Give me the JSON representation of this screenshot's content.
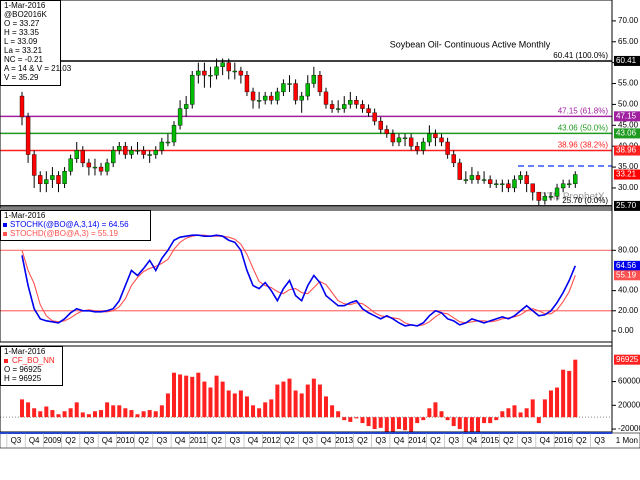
{
  "chart_data": [
    {
      "type": "candlestick",
      "title": "Soybean Oil- Continuous Active Monthly",
      "watermark": "DTN ProphetX",
      "info": [
        "1-Mar-2016",
        "@BO2016K",
        "O = 33.27",
        "H = 33.35",
        "L = 33.09",
        "La = 33.21",
        "NC = -0.21",
        "A = 14 & V = 21.03",
        "V = 35.29"
      ],
      "open": [
        52,
        47,
        38,
        33,
        31,
        32,
        33,
        31,
        34,
        37,
        39,
        36,
        35,
        35,
        34,
        36,
        39,
        40,
        38,
        39,
        39,
        38,
        38,
        39,
        41,
        41,
        45,
        49,
        50,
        57,
        58,
        57,
        57,
        59,
        60,
        58,
        58,
        57,
        53,
        51,
        51,
        52,
        51,
        53,
        55,
        55,
        51,
        52,
        55,
        57,
        53,
        50,
        49,
        49,
        50,
        51,
        50,
        49,
        48,
        46,
        44,
        43,
        41,
        42,
        42,
        40,
        39,
        41,
        43,
        42,
        41,
        38,
        36,
        32,
        32,
        33,
        32,
        32,
        31,
        31,
        31,
        30,
        32,
        33,
        31,
        29,
        27,
        28,
        28,
        30,
        31,
        31
      ],
      "high": [
        53,
        48,
        39,
        34,
        34,
        35,
        34,
        35,
        38,
        41,
        40,
        37,
        37,
        36,
        37,
        40,
        41,
        41,
        40,
        41,
        40,
        39,
        40,
        42,
        43,
        46,
        51,
        52,
        58,
        60,
        60,
        59,
        61,
        61,
        61,
        60,
        59,
        58,
        54,
        53,
        53,
        53,
        54,
        56,
        57,
        56,
        53,
        57,
        59,
        58,
        54,
        51,
        51,
        52,
        53,
        52,
        51,
        50,
        49,
        47,
        45,
        44,
        43,
        43,
        43,
        41,
        42,
        45,
        44,
        43,
        42,
        39,
        37,
        34,
        35,
        34,
        34,
        33,
        32,
        32,
        32,
        33,
        34,
        34,
        31,
        29,
        29,
        29,
        31,
        32,
        32,
        34
      ],
      "low": [
        45,
        36,
        30,
        29,
        29,
        30,
        29,
        30,
        33,
        36,
        35,
        33,
        33,
        33,
        33,
        35,
        38,
        37,
        37,
        38,
        37,
        36,
        37,
        38,
        40,
        40,
        44,
        47,
        49,
        55,
        54,
        54,
        56,
        57,
        56,
        56,
        55,
        52,
        49,
        49,
        50,
        50,
        50,
        52,
        53,
        50,
        48,
        51,
        54,
        52,
        49,
        48,
        48,
        48,
        49,
        49,
        48,
        47,
        45,
        43,
        42,
        40,
        40,
        40,
        39,
        38,
        38,
        40,
        40,
        40,
        37,
        35,
        32,
        31,
        31,
        31,
        31,
        30,
        30,
        29,
        29,
        29,
        31,
        29,
        27,
        25.7,
        26,
        27,
        27,
        29,
        30,
        30
      ],
      "close": [
        47,
        38,
        33,
        31,
        32,
        33,
        31,
        34,
        37,
        39,
        36,
        35,
        35,
        34,
        36,
        39,
        40,
        38,
        39,
        39,
        38,
        38,
        39,
        41,
        41,
        45,
        49,
        50,
        57,
        58,
        57,
        57,
        59,
        60,
        58,
        58,
        57,
        53,
        51,
        51,
        52,
        51,
        53,
        55,
        55,
        51,
        52,
        55,
        57,
        53,
        50,
        49,
        49,
        50,
        51,
        50,
        49,
        48,
        46,
        44,
        43,
        41,
        42,
        42,
        40,
        39,
        41,
        43,
        42,
        41,
        38,
        36,
        32,
        32,
        33,
        32,
        32,
        31,
        31,
        31,
        30,
        32,
        33,
        31,
        29,
        27,
        28,
        28,
        30,
        31,
        31,
        33.21
      ],
      "up_color": "#00bb00",
      "down_color": "#ff0000",
      "ylim": [
        25.2,
        75
      ],
      "yticks": [
        {
          "value": 30,
          "label": "30.00"
        },
        {
          "value": 35,
          "label": "35.00"
        },
        {
          "value": 40,
          "label": "40.00"
        },
        {
          "value": 45,
          "label": "45.00"
        },
        {
          "value": 50,
          "label": "50.00"
        },
        {
          "value": 55,
          "label": "55.00"
        },
        {
          "value": 60,
          "label": "60.00"
        },
        {
          "value": 65,
          "label": "65.00"
        },
        {
          "value": 70,
          "label": "70.00"
        }
      ],
      "levels": [
        {
          "value": 60.41,
          "label": "60.41 (100.0%)",
          "axis_label": "60.41",
          "color": "#000000"
        },
        {
          "value": 47.15,
          "label": "47.15 (61.8%)",
          "axis_label": "47.15",
          "color": "#a020a0"
        },
        {
          "value": 43.06,
          "label": "43.06 (50.0%)",
          "axis_label": "43.06",
          "color": "#1f9a1f"
        },
        {
          "value": 38.96,
          "label": "38.96 (38.2%)",
          "axis_label": "38.96",
          "color": "#ff2020"
        },
        {
          "value": 25.7,
          "label": "25.70 (0.0%)",
          "axis_label": "25.70",
          "color": "#000000"
        }
      ],
      "dashed_level": {
        "value": 35.26,
        "color": "#3355ff"
      }
    },
    {
      "type": "line",
      "info": [
        "1-Mar-2016"
      ],
      "series": [
        {
          "name": "STOCHK(@BO@A,3,14) = 64.56",
          "color": "#0000ee",
          "values": [
            75,
            45,
            22,
            12,
            10,
            9,
            8,
            12,
            18,
            22,
            20,
            20,
            19,
            19,
            20,
            22,
            30,
            45,
            60,
            55,
            62,
            70,
            60,
            72,
            80,
            90,
            93,
            94,
            95,
            95,
            94,
            94,
            95,
            94,
            90,
            88,
            80,
            60,
            45,
            42,
            48,
            40,
            30,
            42,
            50,
            35,
            30,
            45,
            55,
            48,
            35,
            30,
            25,
            25,
            28,
            30,
            22,
            18,
            15,
            12,
            15,
            12,
            8,
            5,
            6,
            5,
            8,
            15,
            20,
            18,
            12,
            10,
            6,
            8,
            12,
            10,
            8,
            10,
            12,
            14,
            12,
            15,
            20,
            25,
            20,
            15,
            16,
            20,
            28,
            38,
            50,
            64.56
          ]
        },
        {
          "name": "STOCHD(@BO@A,3) = 55.19",
          "color": "#ff5050",
          "values": [
            80,
            60,
            47,
            26,
            15,
            10,
            9,
            10,
            13,
            17,
            20,
            21,
            20,
            19,
            19,
            20,
            24,
            32,
            45,
            53,
            59,
            62,
            64,
            67,
            71,
            81,
            88,
            92,
            94,
            95,
            95,
            94,
            94,
            94,
            93,
            91,
            86,
            76,
            62,
            49,
            45,
            43,
            39,
            37,
            41,
            42,
            38,
            37,
            43,
            49,
            46,
            38,
            30,
            27,
            26,
            28,
            27,
            23,
            18,
            15,
            14,
            13,
            12,
            8,
            6,
            5,
            6,
            9,
            14,
            18,
            17,
            13,
            9,
            8,
            9,
            10,
            10,
            9,
            10,
            12,
            13,
            14,
            16,
            20,
            22,
            20,
            17,
            17,
            21,
            29,
            39,
            55.19
          ]
        }
      ],
      "ylim": [
        -11,
        120
      ],
      "yticks": [
        {
          "value": 0,
          "label": "0.00"
        },
        {
          "value": 20,
          "label": "20.00"
        },
        {
          "value": 40,
          "label": "40.00"
        },
        {
          "value": 80,
          "label": "80.00"
        }
      ],
      "bands": [
        80,
        20
      ],
      "band_color": "#ff7070"
    },
    {
      "type": "bar",
      "info": [
        "1-Mar-2016",
        "O = 96925",
        "H = 96925"
      ],
      "series": [
        {
          "name": "CF_BO_NN",
          "color": "#ff2020",
          "values": [
            30000,
            25000,
            15000,
            10000,
            18000,
            12000,
            5000,
            10000,
            15000,
            25000,
            8000,
            5000,
            10000,
            12000,
            25000,
            20000,
            20000,
            15000,
            12000,
            5000,
            10000,
            12000,
            10000,
            20000,
            40000,
            75000,
            72000,
            70000,
            68000,
            75000,
            60000,
            50000,
            70000,
            60000,
            45000,
            40000,
            45000,
            35000,
            20000,
            15000,
            25000,
            30000,
            55000,
            60000,
            65000,
            45000,
            40000,
            55000,
            65000,
            55000,
            35000,
            20000,
            10000,
            -5000,
            -8000,
            -2000,
            -10000,
            -15000,
            -20000,
            -18000,
            -25000,
            -30000,
            -20000,
            -22000,
            -45000,
            -10000,
            -5000,
            15000,
            25000,
            10000,
            -5000,
            -15000,
            -20000,
            -25000,
            -30000,
            -35000,
            -10000,
            -10000,
            -5000,
            10000,
            15000,
            20000,
            8000,
            15000,
            30000,
            -10000,
            30000,
            45000,
            50000,
            80000,
            78000,
            96925
          ]
        }
      ],
      "ylim": [
        -25000,
        120000
      ],
      "yticks": [
        -20000,
        20000,
        60000
      ]
    }
  ],
  "x_axis": {
    "labels": [
      "Q3",
      "Q4",
      "2009",
      "Q2",
      "Q3",
      "Q4",
      "2010",
      "Q2",
      "Q3",
      "Q4",
      "2011",
      "Q2",
      "Q3",
      "Q4",
      "2012",
      "Q2",
      "Q3",
      "Q4",
      "2013",
      "Q2",
      "Q3",
      "Q4",
      "2014",
      "Q2",
      "Q3",
      "Q4",
      "2015",
      "Q2",
      "Q3",
      "Q4",
      "2016",
      "Q2",
      "Q3"
    ],
    "end_label": "1 Mon"
  }
}
